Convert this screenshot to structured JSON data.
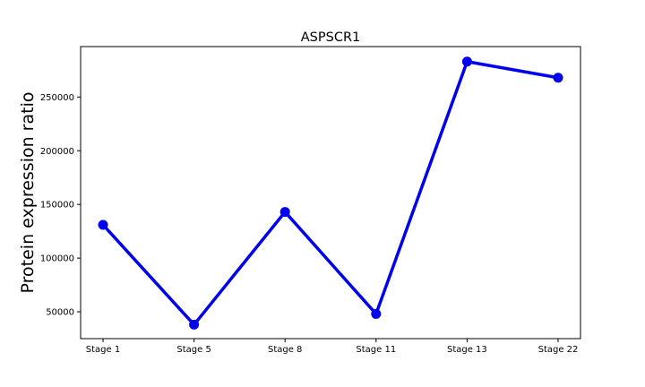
{
  "chart_data": {
    "type": "line",
    "title": "ASPSCR1",
    "xlabel": "",
    "ylabel": "Protein expression ratio",
    "categories": [
      "Stage 1",
      "Stage 5",
      "Stage 8",
      "Stage 11",
      "Stage 13",
      "Stage 22"
    ],
    "series": [
      {
        "values": [
          131000,
          38000,
          143000,
          48000,
          283000,
          268000
        ],
        "color": "#0000ee"
      }
    ],
    "ylim": [
      25000,
      297000
    ],
    "yticks": [
      50000,
      100000,
      150000,
      200000,
      250000
    ],
    "ytick_labels": [
      "50000",
      "100000",
      "150000",
      "200000",
      "250000"
    ],
    "grid": false,
    "legend": "none"
  }
}
